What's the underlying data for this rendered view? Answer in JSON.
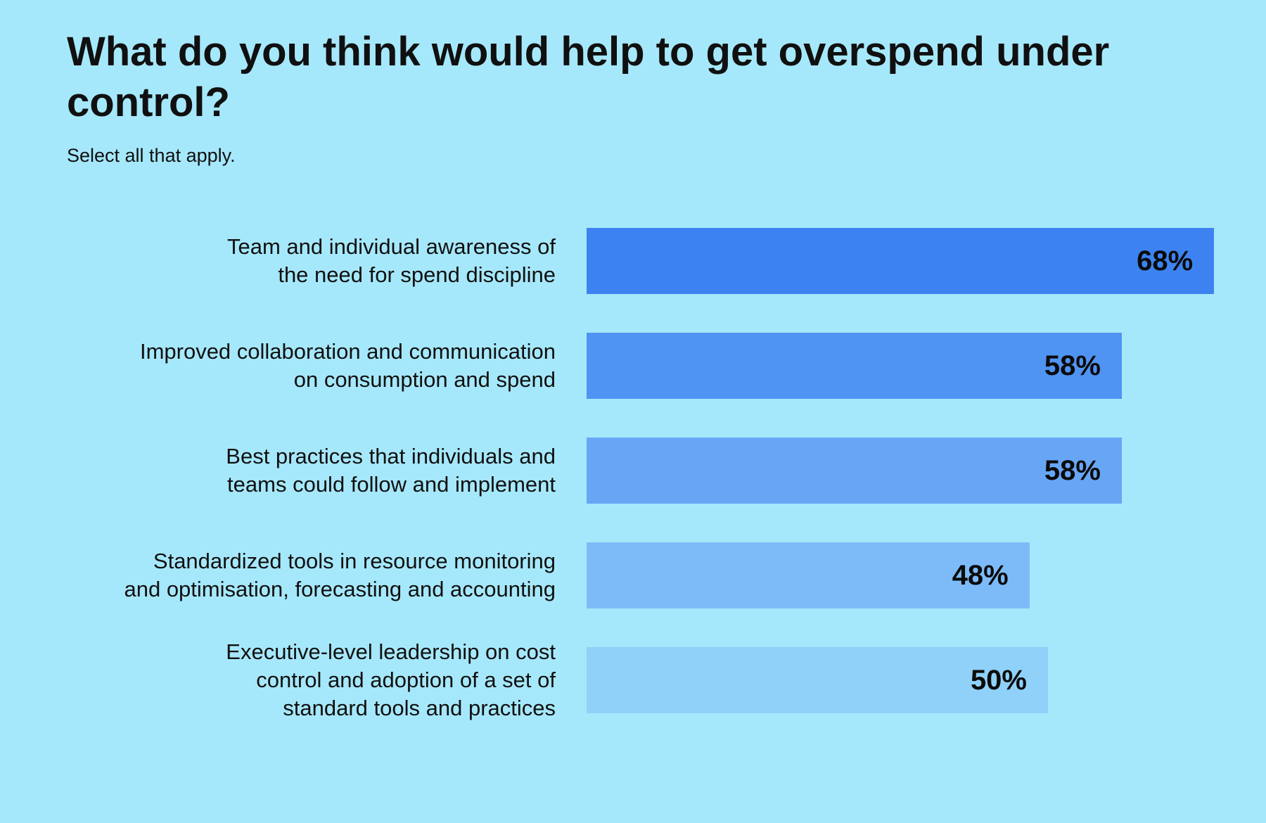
{
  "page": {
    "background": "#a6e8fb",
    "text_color": "#101010"
  },
  "header": {
    "title": "What do you think would help to get overspend under control?",
    "subtitle": "Select all that apply."
  },
  "chart_data": {
    "type": "bar",
    "orientation": "horizontal",
    "title": "What do you think would help to get overspend under control?",
    "subtitle": "Select all that apply.",
    "unit": "%",
    "grid": false,
    "legend": false,
    "value_axis_visible": false,
    "value_labels_position": "inside-end",
    "categories": [
      "Team and individual awareness of the need for spend discipline",
      "Improved collaboration and communication on consumption and spend",
      "Best practices that individuals and teams could follow and implement",
      "Standardized tools in resource monitoring and optimisation, forecasting and accounting",
      "Executive-level leadership on cost control and adoption of a set of standard tools and practices"
    ],
    "values": [
      68,
      58,
      58,
      48,
      50
    ],
    "rows": [
      {
        "label_lines": [
          "Team and individual awareness of",
          "the need for spend discipline"
        ],
        "value": 68,
        "value_label": "68%",
        "color": "#3c83f1"
      },
      {
        "label_lines": [
          "Improved collaboration and communication",
          "on consumption and spend"
        ],
        "value": 58,
        "value_label": "58%",
        "color": "#4f93f3"
      },
      {
        "label_lines": [
          "Best practices that individuals and",
          "teams could follow and implement"
        ],
        "value": 58,
        "value_label": "58%",
        "color": "#67a6f5"
      },
      {
        "label_lines": [
          "Standardized tools in resource monitoring",
          "and optimisation, forecasting and accounting"
        ],
        "value": 48,
        "value_label": "48%",
        "color": "#7dbbf8"
      },
      {
        "label_lines": [
          "Executive-level leadership on cost",
          "control and adoption of a set of",
          "standard tools and practices"
        ],
        "value": 50,
        "value_label": "50%",
        "color": "#8fd1f8"
      }
    ]
  }
}
